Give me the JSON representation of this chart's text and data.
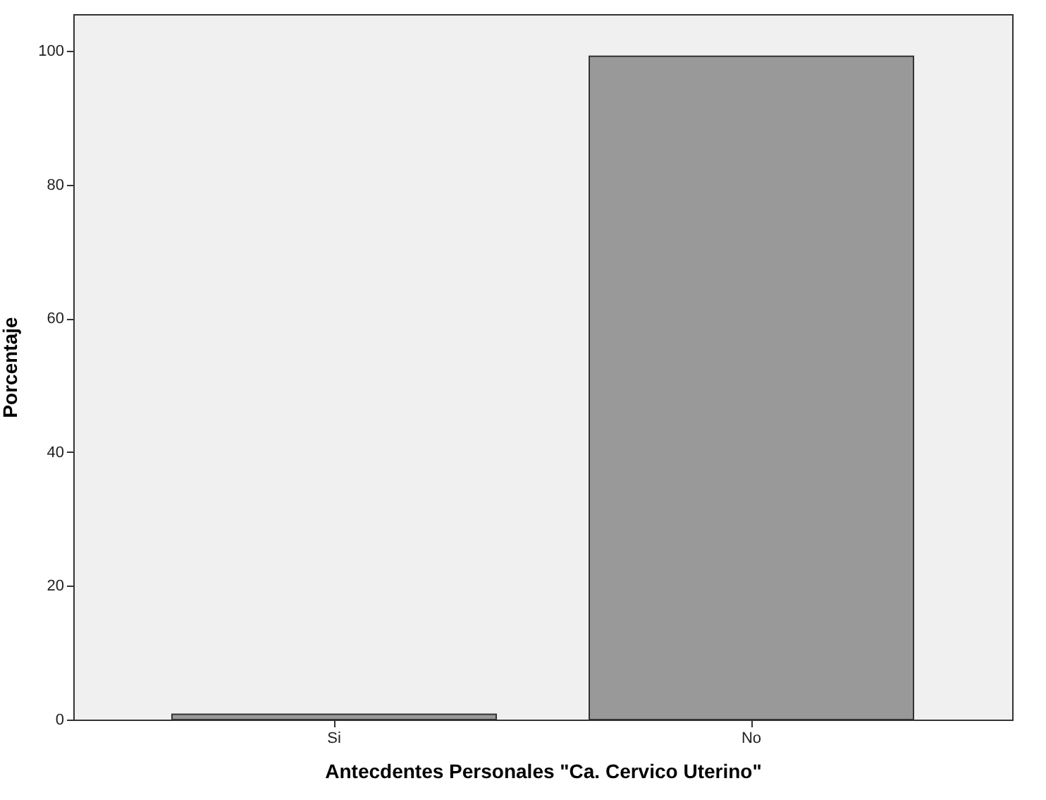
{
  "chart_data": {
    "type": "bar",
    "xlabel": "Antecdentes Personales \"Ca. Cervico Uterino\"",
    "ylabel": "Porcentaje",
    "categories": [
      "Si",
      "No"
    ],
    "values": [
      0.8,
      99.2
    ],
    "colors": [
      "#999999",
      "#999999"
    ],
    "ylim": [
      0,
      105.5
    ],
    "yticks": [
      0,
      20,
      40,
      60,
      80,
      100
    ],
    "grid": false
  }
}
